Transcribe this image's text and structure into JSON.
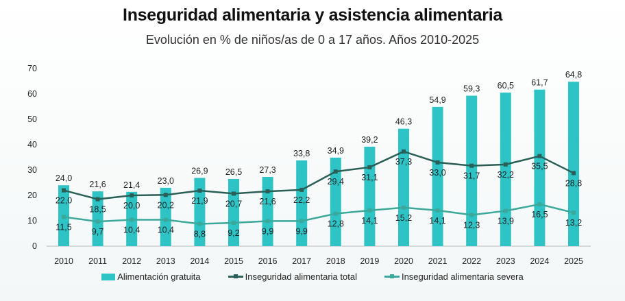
{
  "title": "Inseguridad alimentaria y asistencia alimentaria",
  "subtitle": "Evolución en % de niños/as de 0 a 17 años. Años 2010-2025",
  "chart_data": {
    "type": "bar+line",
    "title": "Inseguridad alimentaria y asistencia alimentaria",
    "subtitle": "Evolución en % de niños/as de 0 a 17 años. Años 2010-2025",
    "categories": [
      "2010",
      "2011",
      "2012",
      "2013",
      "2014",
      "2015",
      "2016",
      "2017",
      "2018",
      "2019",
      "2020",
      "2021",
      "2022",
      "2023",
      "2024",
      "2025"
    ],
    "ylim": [
      0,
      70
    ],
    "yticks": [
      0,
      10,
      20,
      30,
      40,
      50,
      60,
      70
    ],
    "grid": false,
    "legend_position": "bottom",
    "series": [
      {
        "name": "Alimentación gratuita",
        "type": "bar",
        "color": "#2ec4c6",
        "values": [
          24.0,
          21.6,
          21.4,
          23.0,
          26.9,
          26.5,
          27.3,
          33.8,
          34.9,
          39.2,
          46.3,
          54.9,
          59.3,
          60.5,
          61.7,
          64.8
        ],
        "labels": [
          "24,0",
          "21,6",
          "21,4",
          "23,0",
          "26,9",
          "26,5",
          "27,3",
          "33,8",
          "34,9",
          "39,2",
          "46,3",
          "54,9",
          "59,3",
          "60,5",
          "61,7",
          "64,8"
        ]
      },
      {
        "name": "Inseguridad alimentaria total",
        "type": "line",
        "color": "#2a5f57",
        "values": [
          22.0,
          18.5,
          20.0,
          20.2,
          21.9,
          20.7,
          21.6,
          22.2,
          29.4,
          31.1,
          37.3,
          33.0,
          31.7,
          32.2,
          35.5,
          28.8
        ],
        "labels": [
          "22,0",
          "18,5",
          "20,0",
          "20,2",
          "21,9",
          "20,7",
          "21,6",
          "22,2",
          "29,4",
          "31,1",
          "37,3",
          "33,0",
          "31,7",
          "32,2",
          "35,5",
          "28,8"
        ]
      },
      {
        "name": "Inseguridad alimentaria severa",
        "type": "line",
        "color": "#3aa89a",
        "values": [
          11.5,
          9.7,
          10.4,
          10.4,
          8.8,
          9.2,
          9.9,
          9.9,
          12.8,
          14.1,
          15.2,
          14.1,
          12.3,
          13.9,
          16.5,
          13.2
        ],
        "labels": [
          "11,5",
          "9,7",
          "10,4",
          "10,4",
          "8,8",
          "9,2",
          "9,9",
          "9,9",
          "12,8",
          "14,1",
          "15,2",
          "14,1",
          "12,3",
          "13,9",
          "16,5",
          "13,2"
        ]
      }
    ]
  }
}
